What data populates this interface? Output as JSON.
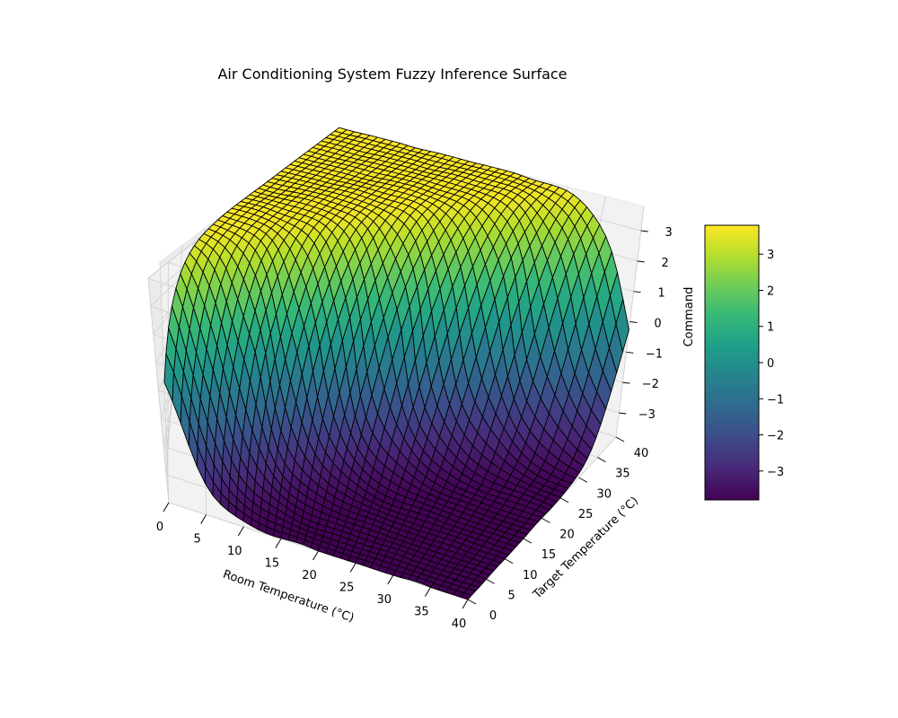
{
  "chart_data": {
    "type": "surface",
    "title": "Air Conditioning System Fuzzy Inference Surface",
    "xlabel": "Room Temperature (°C)",
    "ylabel": "Target Temperature (°C)",
    "zlabel": "Command",
    "colorbar_label": "",
    "colormap": "viridis",
    "xlim": [
      0,
      40
    ],
    "ylim": [
      0,
      40
    ],
    "zlim": [
      -3.8,
      3.8
    ],
    "x_ticks": [
      0,
      5,
      10,
      15,
      20,
      25,
      30,
      35,
      40
    ],
    "y_ticks": [
      0,
      5,
      10,
      15,
      20,
      25,
      30,
      35,
      40
    ],
    "z_ticks": [
      -3,
      -2,
      -1,
      0,
      1,
      2,
      3
    ],
    "colorbar_ticks": [
      -3,
      -2,
      -1,
      0,
      1,
      2,
      3
    ],
    "grid": true,
    "edgecolor": "#000000",
    "surface_rule": "command ≈ 3.8·tanh(0.19·(target − room)), piecewise fuzzy plateaus",
    "sample_points": [
      {
        "room": 0,
        "target": 0,
        "command": 0.0
      },
      {
        "room": 0,
        "target": 40,
        "command": 3.8
      },
      {
        "room": 40,
        "target": 0,
        "command": -3.8
      },
      {
        "room": 40,
        "target": 40,
        "command": 0.0
      },
      {
        "room": 20,
        "target": 20,
        "command": 0.0
      },
      {
        "room": 10,
        "target": 30,
        "command": 3.5
      },
      {
        "room": 30,
        "target": 10,
        "command": -3.5
      }
    ]
  }
}
